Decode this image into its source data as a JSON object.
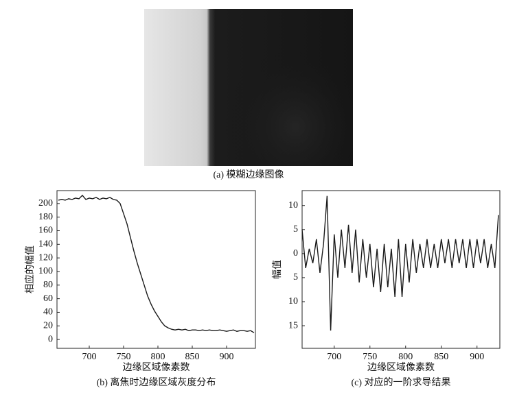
{
  "figure": {
    "image_caption": "(a) 模糊边缘图像"
  },
  "chart_data": [
    {
      "type": "line",
      "caption": "(b) 离焦时边缘区域灰度分布",
      "x_label": "边缘区域像素数",
      "y_label": "相应的幅值",
      "x": [
        655,
        660,
        665,
        670,
        675,
        680,
        685,
        690,
        695,
        700,
        705,
        710,
        715,
        720,
        725,
        730,
        735,
        740,
        745,
        750,
        755,
        760,
        765,
        770,
        775,
        780,
        785,
        790,
        795,
        800,
        805,
        810,
        815,
        820,
        825,
        830,
        835,
        840,
        845,
        850,
        855,
        860,
        865,
        870,
        875,
        880,
        885,
        890,
        895,
        900,
        905,
        910,
        915,
        920,
        925,
        930,
        935,
        940
      ],
      "series": [
        {
          "color": "#1a1a1a",
          "values": [
            205,
            206,
            205,
            207,
            206,
            208,
            207,
            212,
            206,
            208,
            207,
            209,
            206,
            208,
            207,
            209,
            206,
            205,
            200,
            185,
            170,
            150,
            130,
            112,
            96,
            80,
            64,
            52,
            42,
            34,
            26,
            20,
            17,
            15,
            14,
            15,
            14,
            15,
            13,
            14,
            14,
            13,
            14,
            13,
            14,
            13,
            13,
            14,
            13,
            12,
            13,
            14,
            12,
            13,
            13,
            12,
            13,
            10
          ]
        }
      ],
      "xlim": [
        653,
        942
      ],
      "ylim": [
        -13,
        219
      ],
      "xticks": [
        700,
        750,
        800,
        850,
        900
      ],
      "yticks": [
        0,
        20,
        40,
        60,
        80,
        100,
        120,
        140,
        160,
        180,
        200
      ]
    },
    {
      "type": "line",
      "caption": "(c) 对应的一阶求导结果",
      "x_label": "边缘区域像素数",
      "y_label": "幅值",
      "x": [
        655,
        660,
        665,
        670,
        675,
        680,
        685,
        690,
        695,
        700,
        705,
        710,
        715,
        720,
        725,
        730,
        735,
        740,
        745,
        750,
        755,
        760,
        765,
        770,
        775,
        780,
        785,
        790,
        795,
        800,
        805,
        810,
        815,
        820,
        825,
        830,
        835,
        840,
        845,
        850,
        855,
        860,
        865,
        870,
        875,
        880,
        885,
        890,
        895,
        900,
        905,
        910,
        915,
        920,
        925,
        930
      ],
      "series": [
        {
          "color": "#1a1a1a",
          "values": [
            5,
            -3,
            1,
            -2,
            3,
            -4,
            2,
            12,
            -16,
            4,
            -5,
            5,
            -3,
            6,
            -4,
            5,
            -6,
            3,
            -5,
            2,
            -7,
            1,
            -8,
            2,
            -7,
            1,
            -9,
            3,
            -9,
            2,
            -6,
            3,
            -4,
            2,
            -3,
            3,
            -3,
            2,
            -3,
            3,
            -2,
            3,
            -3,
            3,
            -2,
            3,
            -3,
            3,
            -3,
            3,
            -2,
            3,
            -3,
            2,
            -3,
            8
          ]
        }
      ],
      "xlim": [
        655,
        932
      ],
      "ylim": [
        -19.7,
        13.1
      ],
      "xticks": [
        700,
        750,
        800,
        850,
        900
      ],
      "yticks": [
        10,
        5,
        0,
        {
          "value": -5,
          "label": "5"
        },
        {
          "value": -10,
          "label": "10"
        },
        {
          "value": -15,
          "label": "15"
        }
      ]
    }
  ]
}
